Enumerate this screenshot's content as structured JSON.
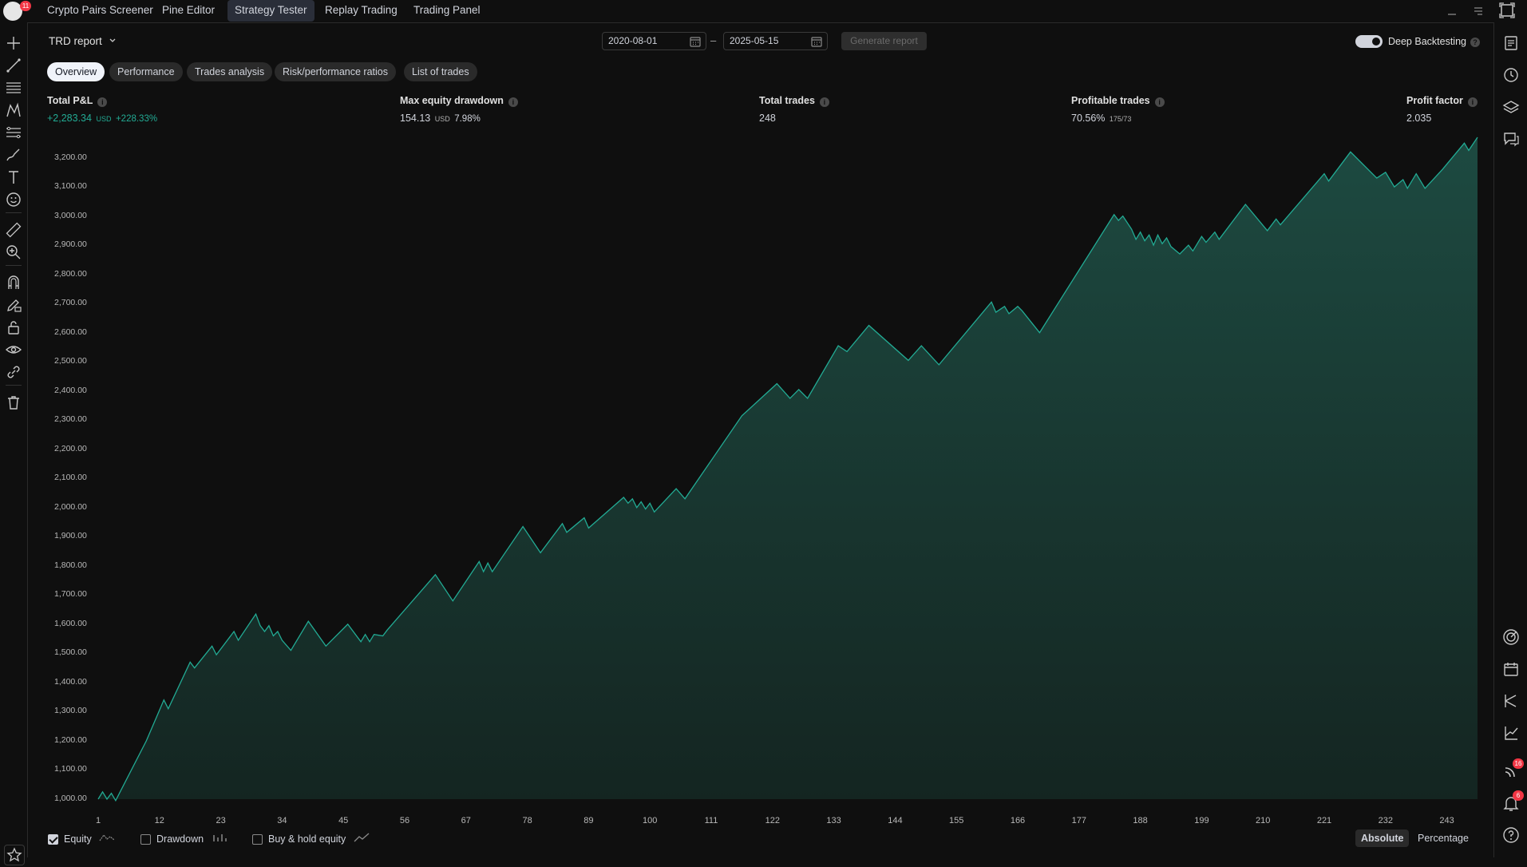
{
  "topbar": {
    "logo_badge": "11",
    "tabs": [
      {
        "label": "Crypto Pairs Screener",
        "active": false
      },
      {
        "label": "Pine Editor",
        "active": false
      },
      {
        "label": "Strategy Tester",
        "active": true
      },
      {
        "label": "Replay Trading",
        "active": false
      },
      {
        "label": "Trading Panel",
        "active": false
      }
    ]
  },
  "report": {
    "title": "TRD report",
    "date_from": "2020-08-01",
    "date_separator": "–",
    "date_to": "2025-05-15",
    "generate_label": "Generate report",
    "deep_backtesting_label": "Deep Backtesting",
    "deep_backtesting_on": true
  },
  "subtabs": [
    {
      "label": "Overview",
      "active": true
    },
    {
      "label": "Performance",
      "active": false
    },
    {
      "label": "Trades analysis",
      "active": false
    },
    {
      "label": "Risk/performance ratios",
      "active": false
    },
    {
      "label": "List of trades",
      "active": false
    }
  ],
  "stats": {
    "total_pnl": {
      "label": "Total P&L",
      "value": "+2,283.34",
      "unit": "USD",
      "pct": "+228.33%"
    },
    "max_drawdown": {
      "label": "Max equity drawdown",
      "value": "154.13",
      "unit": "USD",
      "pct": "7.98%"
    },
    "total_trades": {
      "label": "Total trades",
      "value": "248"
    },
    "profitable_trades": {
      "label": "Profitable trades",
      "value": "70.56%",
      "ratio": "175/73"
    },
    "profit_factor": {
      "label": "Profit factor",
      "value": "2.035"
    }
  },
  "footer": {
    "equity_label": "Equity",
    "drawdown_label": "Drawdown",
    "buyhold_label": "Buy & hold equity",
    "equity_checked": true,
    "drawdown_checked": false,
    "buyhold_checked": false,
    "absolute_label": "Absolute",
    "percentage_label": "Percentage",
    "active_mode": "Absolute"
  },
  "right_badges": {
    "rss": "16",
    "bell": "6"
  },
  "colors": {
    "accent": "#22ab94",
    "fill": "#1b3a34",
    "background": "#0f0f0f",
    "badge": "#f23645"
  },
  "chart_data": {
    "type": "area",
    "series": [
      {
        "values": [
          [
            1,
            1000
          ],
          [
            2,
            1025
          ],
          [
            3,
            1000
          ],
          [
            4,
            1020
          ],
          [
            5,
            995
          ],
          [
            12,
            1200
          ],
          [
            16,
            1340
          ],
          [
            17,
            1310
          ],
          [
            22,
            1470
          ],
          [
            23,
            1450
          ],
          [
            27,
            1525
          ],
          [
            28,
            1495
          ],
          [
            32,
            1575
          ],
          [
            33,
            1545
          ],
          [
            37,
            1635
          ],
          [
            38,
            1595
          ],
          [
            39,
            1575
          ],
          [
            40,
            1595
          ],
          [
            41,
            1560
          ],
          [
            42,
            1575
          ],
          [
            43,
            1545
          ],
          [
            45,
            1510
          ],
          [
            49,
            1610
          ],
          [
            53,
            1525
          ],
          [
            58,
            1600
          ],
          [
            61,
            1540
          ],
          [
            62,
            1565
          ],
          [
            63,
            1540
          ],
          [
            64,
            1565
          ],
          [
            66,
            1560
          ],
          [
            67,
            1580
          ],
          [
            78,
            1770
          ],
          [
            82,
            1680
          ],
          [
            88,
            1815
          ],
          [
            89,
            1780
          ],
          [
            90,
            1810
          ],
          [
            91,
            1780
          ],
          [
            98,
            1935
          ],
          [
            102,
            1845
          ],
          [
            107,
            1945
          ],
          [
            108,
            1915
          ],
          [
            112,
            1965
          ],
          [
            113,
            1930
          ],
          [
            121,
            2035
          ],
          [
            122,
            2015
          ],
          [
            123,
            2030
          ],
          [
            124,
            2000
          ],
          [
            125,
            2020
          ],
          [
            126,
            1995
          ],
          [
            127,
            2015
          ],
          [
            128,
            1985
          ],
          [
            133,
            2065
          ],
          [
            135,
            2030
          ],
          [
            148,
            2315
          ],
          [
            156,
            2425
          ],
          [
            159,
            2375
          ],
          [
            161,
            2405
          ],
          [
            163,
            2375
          ],
          [
            170,
            2555
          ],
          [
            172,
            2535
          ],
          [
            177,
            2625
          ],
          [
            186,
            2505
          ],
          [
            189,
            2555
          ],
          [
            193,
            2490
          ],
          [
            205,
            2705
          ],
          [
            206,
            2670
          ],
          [
            208,
            2690
          ],
          [
            209,
            2665
          ],
          [
            211,
            2690
          ],
          [
            212,
            2675
          ],
          [
            216,
            2600
          ],
          [
            233,
            3005
          ],
          [
            234,
            2985
          ],
          [
            235,
            3000
          ],
          [
            237,
            2955
          ],
          [
            238,
            2920
          ],
          [
            239,
            2945
          ],
          [
            240,
            2915
          ],
          [
            241,
            2935
          ],
          [
            242,
            2900
          ],
          [
            243,
            2935
          ],
          [
            244,
            2905
          ],
          [
            245,
            2925
          ],
          [
            246,
            2895
          ],
          [
            248,
            2870
          ],
          [
            250,
            2900
          ],
          [
            251,
            2880
          ],
          [
            253,
            2930
          ],
          [
            254,
            2910
          ],
          [
            256,
            2945
          ],
          [
            257,
            2920
          ],
          [
            263,
            3040
          ],
          [
            268,
            2950
          ],
          [
            270,
            2990
          ],
          [
            271,
            2970
          ],
          [
            281,
            3145
          ],
          [
            282,
            3120
          ],
          [
            287,
            3220
          ],
          [
            293,
            3130
          ],
          [
            295,
            3150
          ],
          [
            297,
            3100
          ],
          [
            299,
            3125
          ],
          [
            300,
            3095
          ],
          [
            302,
            3145
          ],
          [
            304,
            3095
          ],
          [
            308,
            3160
          ],
          [
            313,
            3250
          ],
          [
            314,
            3225
          ],
          [
            316,
            3270
          ]
        ]
      }
    ],
    "xlim": [
      1,
      316
    ],
    "ylim": [
      1000,
      3270
    ],
    "x_ticks": [
      "1",
      "12",
      "23",
      "34",
      "45",
      "56",
      "67",
      "78",
      "89",
      "100",
      "111",
      "122",
      "133",
      "144",
      "155",
      "166",
      "177",
      "188",
      "199",
      "210",
      "221",
      "232",
      "243"
    ],
    "y_ticks": [
      "1,000.00",
      "1,100.00",
      "1,200.00",
      "1,300.00",
      "1,400.00",
      "1,500.00",
      "1,600.00",
      "1,700.00",
      "1,800.00",
      "1,900.00",
      "2,000.00",
      "2,100.00",
      "2,200.00",
      "2,300.00",
      "2,400.00",
      "2,500.00",
      "2,600.00",
      "2,700.00",
      "2,800.00",
      "2,900.00",
      "3,000.00",
      "3,100.00",
      "3,200.00"
    ]
  }
}
